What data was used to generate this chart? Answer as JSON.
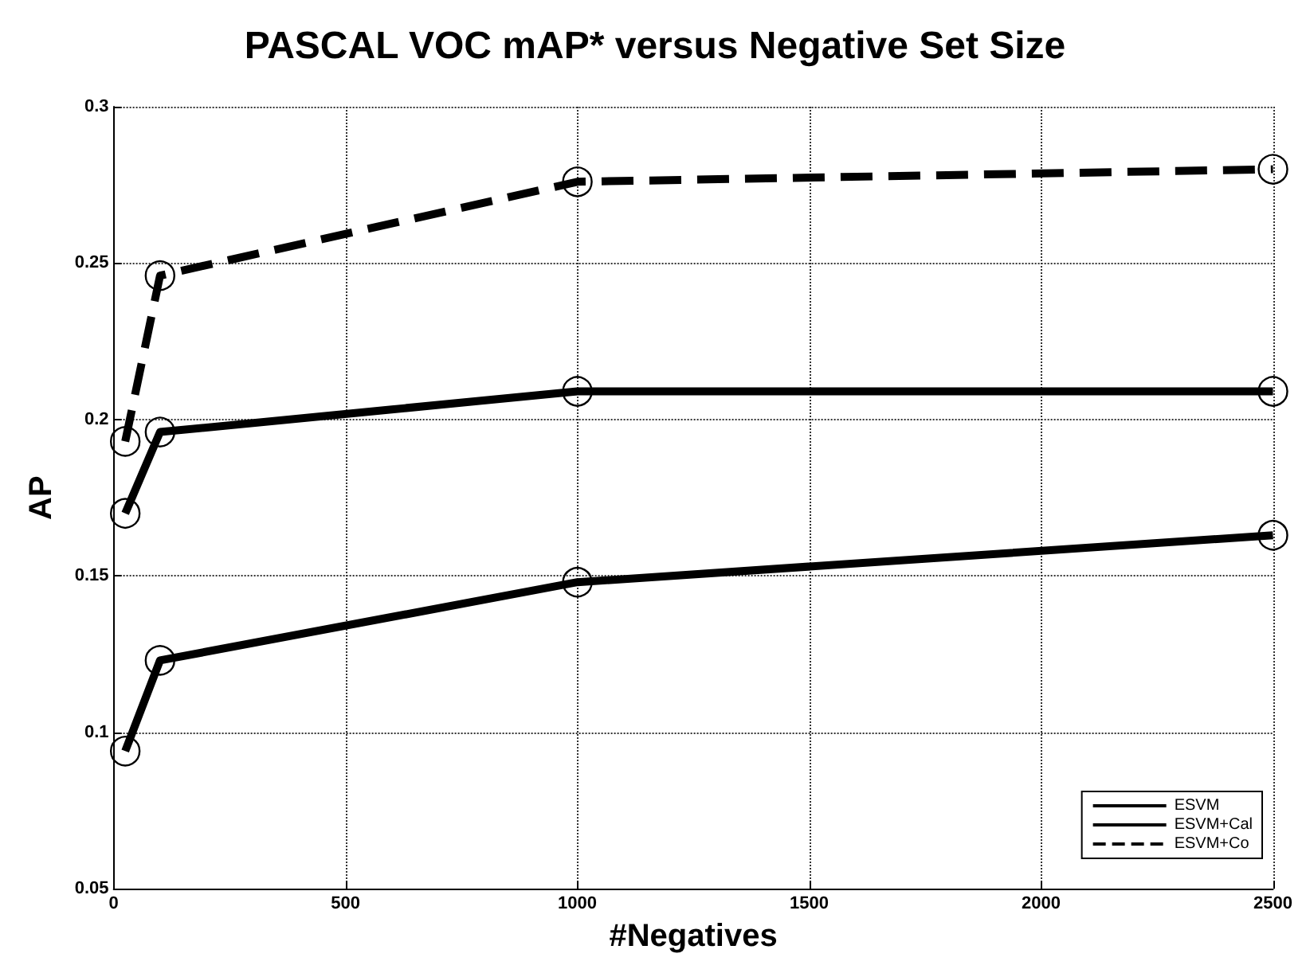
{
  "chart_data": {
    "type": "line",
    "title": "PASCAL VOC mAP* versus Negative Set Size",
    "xlabel": "#Negatives",
    "ylabel": "AP",
    "x": [
      25,
      100,
      1000,
      2500
    ],
    "series": [
      {
        "name": "ESVM",
        "color": "#000000",
        "line_style": "solid",
        "values": [
          0.094,
          0.123,
          0.148,
          0.163
        ]
      },
      {
        "name": "ESVM+Cal",
        "color": "#000000",
        "line_style": "solid",
        "values": [
          0.17,
          0.196,
          0.209,
          0.209
        ]
      },
      {
        "name": "ESVM+Co",
        "color": "#000000",
        "line_style": "dashed",
        "values": [
          0.193,
          0.246,
          0.276,
          0.28
        ]
      }
    ],
    "xlim": [
      0,
      2500
    ],
    "xticks": [
      0,
      500,
      1000,
      1500,
      2000,
      2500
    ],
    "ylim": [
      0.05,
      0.3
    ],
    "yticks": [
      0.05,
      0.1,
      0.15,
      0.2,
      0.25,
      0.3
    ],
    "grid": true,
    "legend": "bottom right",
    "marker": "circle"
  }
}
